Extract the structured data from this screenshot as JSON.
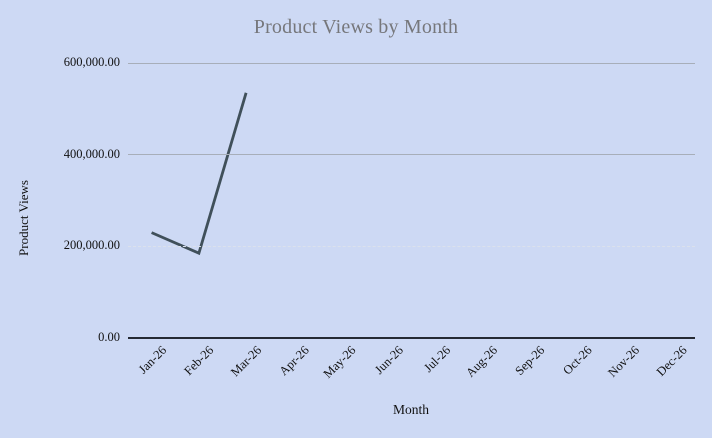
{
  "chart_data": {
    "type": "line",
    "title": "Product Views by Month",
    "xlabel": "Month",
    "ylabel": "Product Views",
    "categories": [
      "Jan-26",
      "Feb-26",
      "Mar-26",
      "Apr-26",
      "May-26",
      "Jun-26",
      "Jul-26",
      "Aug-26",
      "Sep-26",
      "Oct-26",
      "Nov-26",
      "Dec-26"
    ],
    "series": [
      {
        "name": "Product Views",
        "values": [
          230000,
          185000,
          535000,
          null,
          null,
          null,
          null,
          null,
          null,
          null,
          null,
          null
        ]
      }
    ],
    "ylim": [
      0,
      600000
    ],
    "y_ticks": [
      {
        "value": 0,
        "label": "0.00",
        "style": "axis"
      },
      {
        "value": 200000,
        "label": "200,000.00",
        "style": "dashed"
      },
      {
        "value": 400000,
        "label": "400,000.00",
        "style": "solid"
      },
      {
        "value": 600000,
        "label": "600,000.00",
        "style": "solid"
      }
    ],
    "grid": "horizontal",
    "legend": "none",
    "colors": {
      "background": "#cdd9f4",
      "line": "#40505a",
      "grid": "#a7aeb9",
      "grid_dashed": "#dbe1ec",
      "axis": "#252a33",
      "title": "#76777b",
      "text": "#111111"
    }
  }
}
